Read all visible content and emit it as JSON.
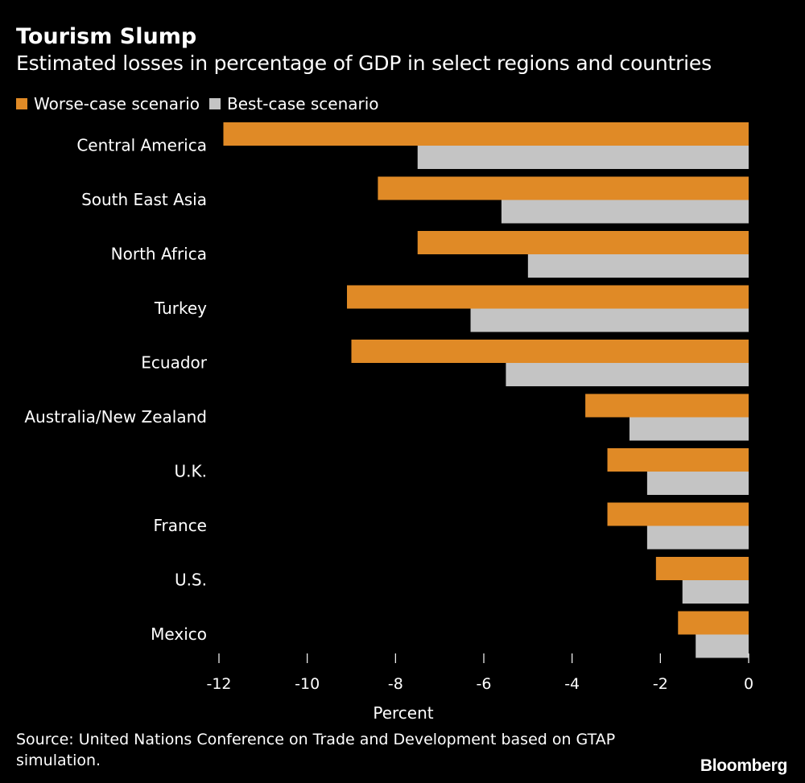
{
  "title": "Tourism Slump",
  "subtitle": "Estimated losses in percentage of GDP in select regions and countries",
  "legend": {
    "worse": "Worse-case scenario",
    "best": "Best-case scenario"
  },
  "colors": {
    "worse": "#e08a26",
    "best": "#c4c4c4",
    "text": "#ffffff",
    "background": "#000000"
  },
  "source": "Source: United Nations Conference on Trade and Development based on GTAP simulation.",
  "brand": "Bloomberg",
  "chart_data": {
    "type": "bar",
    "orientation": "horizontal",
    "title": "Tourism Slump",
    "subtitle": "Estimated losses in percentage of GDP in select regions and countries",
    "xlabel": "Percent",
    "ylabel": "",
    "xlim": [
      -12,
      0
    ],
    "xticks": [
      -12,
      -10,
      -8,
      -6,
      -4,
      -2,
      0
    ],
    "legend_position": "top-left",
    "grid": false,
    "categories": [
      "Central America",
      "South East Asia",
      "North Africa",
      "Turkey",
      "Ecuador",
      "Australia/New Zealand",
      "U.K.",
      "France",
      "U.S.",
      "Mexico"
    ],
    "series": [
      {
        "name": "Worse-case scenario",
        "key": "worse",
        "values": [
          -11.9,
          -8.4,
          -7.5,
          -9.1,
          -9.0,
          -3.7,
          -3.2,
          -3.2,
          -2.1,
          -1.6
        ]
      },
      {
        "name": "Best-case scenario",
        "key": "best",
        "values": [
          -7.5,
          -5.6,
          -5.0,
          -6.3,
          -5.5,
          -2.7,
          -2.3,
          -2.3,
          -1.5,
          -1.2
        ]
      }
    ]
  }
}
